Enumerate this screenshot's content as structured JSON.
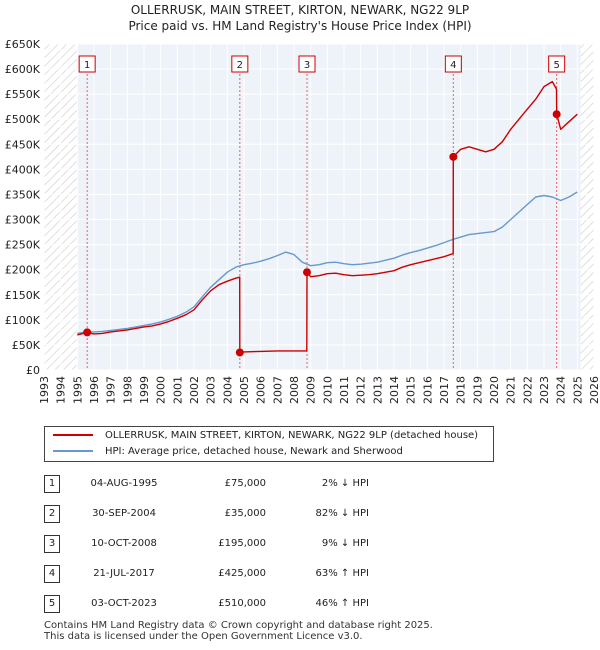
{
  "title_line1": "OLLERRUSK, MAIN STREET, KIRTON, NEWARK, NG22 9LP",
  "title_line2": "Price paid vs. HM Land Registry's House Price Index (HPI)",
  "chart_data": {
    "type": "line",
    "title": "OLLERRUSK, MAIN STREET, KIRTON, NEWARK, NG22 9LP",
    "subtitle": "Price paid vs. HM Land Registry's House Price Index (HPI)",
    "xlabel": "",
    "ylabel": "",
    "xlim": [
      1993,
      2026
    ],
    "ylim": [
      0,
      650000
    ],
    "x_ticks": [
      1993,
      1994,
      1995,
      1996,
      1997,
      1998,
      1999,
      2000,
      2001,
      2002,
      2003,
      2004,
      2005,
      2006,
      2007,
      2008,
      2009,
      2010,
      2011,
      2012,
      2013,
      2014,
      2015,
      2016,
      2017,
      2018,
      2019,
      2020,
      2021,
      2022,
      2023,
      2024,
      2025,
      2026
    ],
    "y_ticks": [
      0,
      50000,
      100000,
      150000,
      200000,
      250000,
      300000,
      350000,
      400000,
      450000,
      500000,
      550000,
      600000,
      650000
    ],
    "y_tick_labels": [
      "£0",
      "£50K",
      "£100K",
      "£150K",
      "£200K",
      "£250K",
      "£300K",
      "£350K",
      "£400K",
      "£450K",
      "£500K",
      "£550K",
      "£600K",
      "£650K"
    ],
    "hatched_regions": [
      [
        1993,
        1995.0
      ],
      [
        2025.2,
        2026
      ]
    ],
    "series": [
      {
        "name": "OLLERRUSK, MAIN STREET, KIRTON, NEWARK, NG22 9LP (detached house)",
        "color": "#cc0000",
        "x": [
          1995.0,
          1995.59,
          1996.0,
          1996.5,
          1997.0,
          1997.5,
          1998.0,
          1998.5,
          1999.0,
          1999.5,
          2000.0,
          2000.5,
          2001.0,
          2001.5,
          2002.0,
          2002.5,
          2003.0,
          2003.5,
          2004.0,
          2004.5,
          2004.74,
          2004.75,
          2005.0,
          2006.0,
          2007.0,
          2008.0,
          2008.77,
          2008.78,
          2009.0,
          2009.5,
          2010.0,
          2010.5,
          2011.0,
          2011.5,
          2012.0,
          2012.5,
          2013.0,
          2013.5,
          2014.0,
          2014.5,
          2015.0,
          2015.5,
          2016.0,
          2016.5,
          2017.0,
          2017.55,
          2017.56,
          2018.0,
          2018.5,
          2019.0,
          2019.5,
          2020.0,
          2020.5,
          2021.0,
          2021.5,
          2022.0,
          2022.5,
          2023.0,
          2023.5,
          2023.75,
          2023.76,
          2024.0,
          2024.5,
          2025.0
        ],
        "y": [
          70000,
          75000,
          72000,
          73000,
          76000,
          78000,
          80000,
          83000,
          86000,
          88000,
          92000,
          97000,
          103000,
          110000,
          120000,
          140000,
          158000,
          170000,
          177000,
          183000,
          185000,
          35000,
          36000,
          37000,
          38000,
          38000,
          38000,
          195000,
          186000,
          188000,
          192000,
          193000,
          190000,
          188000,
          189000,
          190000,
          192000,
          195000,
          198000,
          205000,
          210000,
          214000,
          218000,
          222000,
          226000,
          232000,
          425000,
          440000,
          445000,
          440000,
          435000,
          440000,
          455000,
          480000,
          500000,
          520000,
          540000,
          565000,
          575000,
          560000,
          510000,
          480000,
          495000,
          510000
        ]
      },
      {
        "name": "HPI: Average price, detached house, Newark and Sherwood",
        "color": "#6699cc",
        "x": [
          1995.0,
          1995.5,
          1996.0,
          1996.5,
          1997.0,
          1997.5,
          1998.0,
          1998.5,
          1999.0,
          1999.5,
          2000.0,
          2000.5,
          2001.0,
          2001.5,
          2002.0,
          2002.5,
          2003.0,
          2003.5,
          2004.0,
          2004.5,
          2005.0,
          2005.5,
          2006.0,
          2006.5,
          2007.0,
          2007.5,
          2008.0,
          2008.5,
          2009.0,
          2009.5,
          2010.0,
          2010.5,
          2011.0,
          2011.5,
          2012.0,
          2012.5,
          2013.0,
          2013.5,
          2014.0,
          2014.5,
          2015.0,
          2015.5,
          2016.0,
          2016.5,
          2017.0,
          2017.5,
          2018.0,
          2018.5,
          2019.0,
          2019.5,
          2020.0,
          2020.5,
          2021.0,
          2021.5,
          2022.0,
          2022.5,
          2023.0,
          2023.5,
          2024.0,
          2024.5,
          2025.0
        ],
        "y": [
          73000,
          76000,
          76000,
          77000,
          79000,
          81000,
          83000,
          86000,
          89000,
          92000,
          96000,
          101000,
          107000,
          115000,
          126000,
          146000,
          165000,
          180000,
          195000,
          205000,
          210000,
          213000,
          217000,
          222000,
          228000,
          235000,
          230000,
          215000,
          208000,
          210000,
          214000,
          215000,
          212000,
          210000,
          211000,
          213000,
          215000,
          219000,
          223000,
          229000,
          234000,
          238000,
          243000,
          248000,
          254000,
          260000,
          265000,
          270000,
          272000,
          274000,
          276000,
          285000,
          300000,
          315000,
          330000,
          345000,
          348000,
          345000,
          338000,
          345000,
          355000
        ]
      }
    ],
    "sale_markers": [
      {
        "n": "1",
        "x": 1995.59,
        "y": 75000
      },
      {
        "n": "2",
        "x": 2004.75,
        "y": 35000
      },
      {
        "n": "3",
        "x": 2008.78,
        "y": 195000
      },
      {
        "n": "4",
        "x": 2017.56,
        "y": 425000
      },
      {
        "n": "5",
        "x": 2023.76,
        "y": 510000
      }
    ]
  },
  "legend": {
    "property_label": "OLLERRUSK, MAIN STREET, KIRTON, NEWARK, NG22 9LP (detached house)",
    "hpi_label": "HPI: Average price, detached house, Newark and Sherwood",
    "property_color": "#cc0000",
    "hpi_color": "#6699cc"
  },
  "transactions": [
    {
      "n": "1",
      "date": "04-AUG-1995",
      "price": "£75,000",
      "hpi": "2% ↓ HPI"
    },
    {
      "n": "2",
      "date": "30-SEP-2004",
      "price": "£35,000",
      "hpi": "82% ↓ HPI"
    },
    {
      "n": "3",
      "date": "10-OCT-2008",
      "price": "£195,000",
      "hpi": "9% ↓ HPI"
    },
    {
      "n": "4",
      "date": "21-JUL-2017",
      "price": "£425,000",
      "hpi": "63% ↑ HPI"
    },
    {
      "n": "5",
      "date": "03-OCT-2023",
      "price": "£510,000",
      "hpi": "46% ↑ HPI"
    }
  ],
  "footer": {
    "line1": "Contains HM Land Registry data © Crown copyright and database right 2025.",
    "line2": "This data is licensed under the Open Government Licence v3.0."
  }
}
